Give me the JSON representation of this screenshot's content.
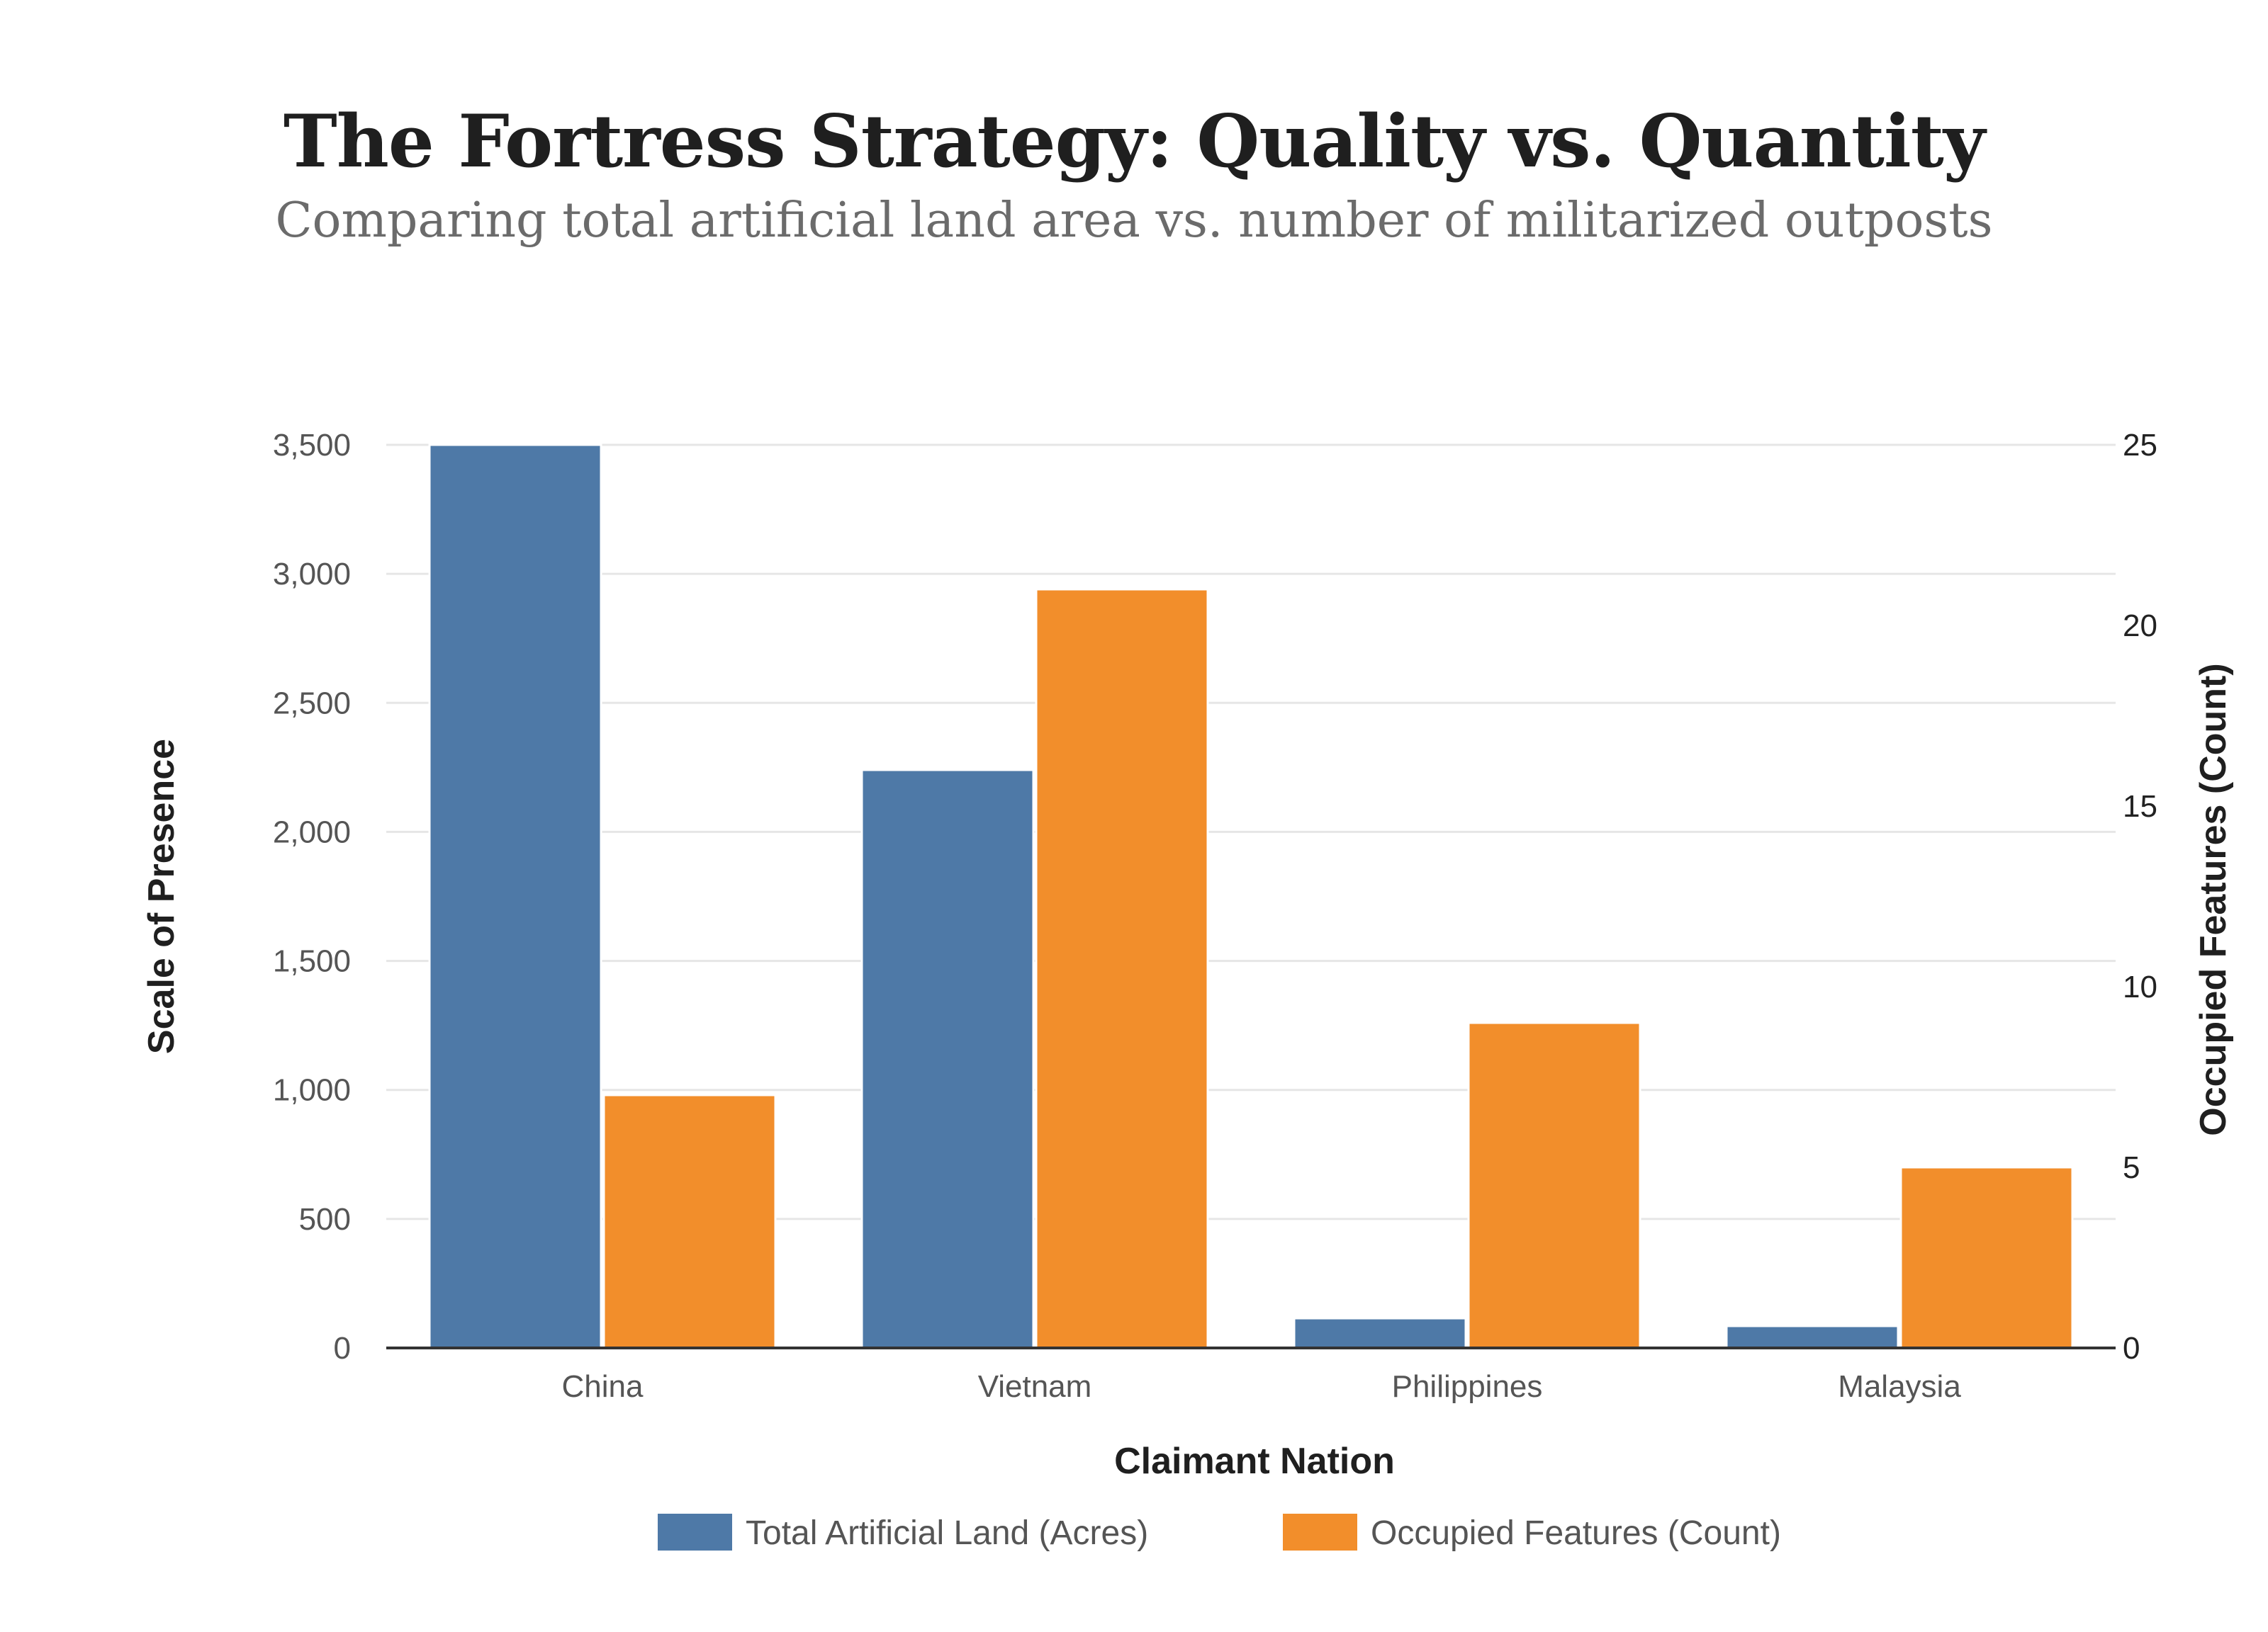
{
  "chart_data": {
    "type": "bar",
    "title": "The Fortress Strategy: Quality vs. Quantity",
    "subtitle": "Comparing total artificial land area vs. number of militarized outposts",
    "xlabel": "Claimant Nation",
    "ylabel": "Scale of Presence",
    "y2label": "Occupied Features (Count)",
    "categories": [
      "China",
      "Vietnam",
      "Philippines",
      "Malaysia"
    ],
    "ylim": [
      0,
      3500
    ],
    "y2lim": [
      0,
      25
    ],
    "yticks": [
      0,
      500,
      1000,
      1500,
      2000,
      2500,
      3000,
      3500
    ],
    "yticklabels": [
      "0",
      "500",
      "1,000",
      "1,500",
      "2,000",
      "2,500",
      "3,000",
      "3,500"
    ],
    "y2ticks": [
      0,
      5,
      10,
      15,
      20,
      25
    ],
    "y2ticklabels": [
      "0",
      "5",
      "10",
      "15",
      "20",
      "25"
    ],
    "grid": true,
    "legend_position": "bottom-center",
    "series": [
      {
        "name": "Total Artificial Land (Acres)",
        "axis": "left",
        "color": "#4e79a7",
        "values": [
          3500,
          2240,
          115,
          85
        ]
      },
      {
        "name": "Occupied Features (Count)",
        "axis": "right",
        "color": "#f28e2b",
        "values": [
          7,
          21,
          9,
          5
        ]
      }
    ]
  }
}
